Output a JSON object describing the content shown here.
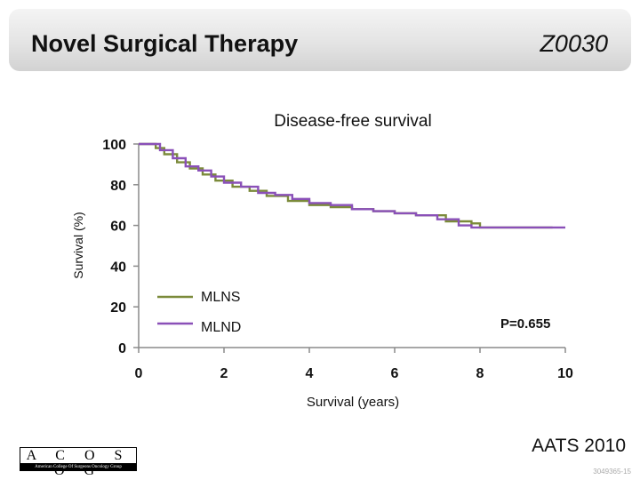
{
  "header": {
    "title": "Novel Surgical Therapy",
    "trial_id": "Z0030"
  },
  "chart_data": {
    "type": "line",
    "title": "Disease-free survival",
    "xlabel": "Survival (years)",
    "ylabel": "Survival (%)",
    "xlim": [
      0,
      10
    ],
    "ylim": [
      0,
      100
    ],
    "x_ticks": [
      0,
      2,
      4,
      6,
      8,
      10
    ],
    "y_ticks": [
      0,
      20,
      40,
      60,
      80,
      100
    ],
    "grid": false,
    "legend_position": "lower-left",
    "annotation": "P=0.655",
    "series": [
      {
        "name": "MLNS",
        "color": "#7b8a3a",
        "points": [
          [
            0,
            100
          ],
          [
            0.25,
            100
          ],
          [
            0.4,
            98
          ],
          [
            0.6,
            95
          ],
          [
            0.9,
            91
          ],
          [
            1.2,
            88
          ],
          [
            1.5,
            85
          ],
          [
            1.8,
            82
          ],
          [
            2.2,
            79
          ],
          [
            2.6,
            77
          ],
          [
            3.0,
            74.5
          ],
          [
            3.5,
            72
          ],
          [
            4.0,
            70
          ],
          [
            4.5,
            69
          ],
          [
            5.0,
            68
          ],
          [
            5.5,
            67
          ],
          [
            6.0,
            66
          ],
          [
            6.5,
            65
          ],
          [
            7.2,
            62
          ],
          [
            7.8,
            61
          ],
          [
            8.0,
            59
          ],
          [
            9.0,
            59
          ],
          [
            9.7,
            59
          ]
        ]
      },
      {
        "name": "MLND",
        "color": "#8a50b8",
        "points": [
          [
            0,
            100
          ],
          [
            0.3,
            100
          ],
          [
            0.5,
            97
          ],
          [
            0.8,
            93
          ],
          [
            1.1,
            89
          ],
          [
            1.4,
            87
          ],
          [
            1.7,
            84
          ],
          [
            2.0,
            81
          ],
          [
            2.4,
            79
          ],
          [
            2.8,
            76
          ],
          [
            3.2,
            75
          ],
          [
            3.6,
            73
          ],
          [
            4.0,
            71
          ],
          [
            4.5,
            70
          ],
          [
            5.0,
            68
          ],
          [
            5.5,
            67
          ],
          [
            6.0,
            66
          ],
          [
            6.5,
            65
          ],
          [
            7.0,
            63
          ],
          [
            7.5,
            60
          ],
          [
            7.8,
            59
          ],
          [
            8.5,
            59
          ],
          [
            9.5,
            59
          ],
          [
            10,
            59
          ]
        ]
      }
    ]
  },
  "footer": {
    "logo_text": "A C O S O G",
    "logo_subtext": "American College Of Surgeons Oncology Group",
    "meeting": "AATS 2010",
    "slide_code": "3049365-15"
  }
}
